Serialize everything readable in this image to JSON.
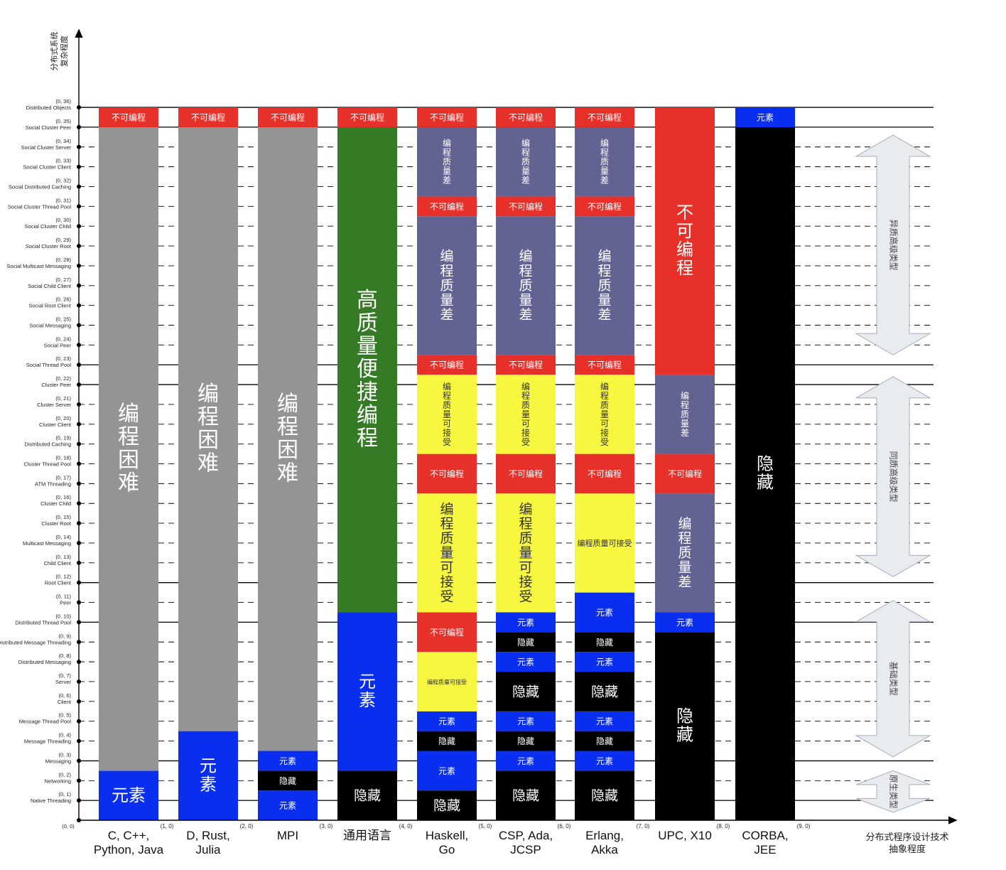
{
  "y_axis_title": [
    "分布式系统",
    "复杂程度"
  ],
  "x_axis_title": [
    "分布式程序设计技术",
    "抽象程度"
  ],
  "origin_label": "(0, 0)",
  "levels": [
    {
      "coord": "(0, 1)",
      "name": "Native Threading"
    },
    {
      "coord": "(0, 2)",
      "name": "Networking"
    },
    {
      "coord": "(0, 3)",
      "name": "Messaging"
    },
    {
      "coord": "(0, 4)",
      "name": "Message Threading"
    },
    {
      "coord": "(0, 5)",
      "name": "Message Thread Pool"
    },
    {
      "coord": "(0, 6)",
      "name": "Client"
    },
    {
      "coord": "(0, 7)",
      "name": "Server"
    },
    {
      "coord": "(0, 8)",
      "name": "Distributed Messaging"
    },
    {
      "coord": "(0, 9)",
      "name": "Distributed Message Threading"
    },
    {
      "coord": "(0, 10)",
      "name": "Distributed Thread Pool"
    },
    {
      "coord": "(0, 11)",
      "name": "Peer"
    },
    {
      "coord": "(0, 12)",
      "name": "Root Client"
    },
    {
      "coord": "(0, 13)",
      "name": "Child Client"
    },
    {
      "coord": "(0, 14)",
      "name": "Multicast Messaging"
    },
    {
      "coord": "(0, 15)",
      "name": "Cluster Root"
    },
    {
      "coord": "(0, 16)",
      "name": "Cluster Child"
    },
    {
      "coord": "(0, 17)",
      "name": "ATM Threading"
    },
    {
      "coord": "(0, 18)",
      "name": "Cluster Thread Pool"
    },
    {
      "coord": "(0, 19)",
      "name": "Distributed Caching"
    },
    {
      "coord": "(0, 20)",
      "name": "Cluster Client"
    },
    {
      "coord": "(0, 21)",
      "name": "Cluster Server"
    },
    {
      "coord": "(0, 22)",
      "name": "Cluster Peer"
    },
    {
      "coord": "(0, 23)",
      "name": "Social Thread Pool"
    },
    {
      "coord": "(0, 24)",
      "name": "Social Peer"
    },
    {
      "coord": "(0, 25)",
      "name": "Social Messaging"
    },
    {
      "coord": "(0, 26)",
      "name": "Social Root Client"
    },
    {
      "coord": "(0, 27)",
      "name": "Social Child Client"
    },
    {
      "coord": "(0, 28)",
      "name": "Social Multicast Messaging"
    },
    {
      "coord": "(0, 29)",
      "name": "Social Cluster Root"
    },
    {
      "coord": "(0, 30)",
      "name": "Social Cluster Child"
    },
    {
      "coord": "(0, 31)",
      "name": "Social Cluster Thread Pool"
    },
    {
      "coord": "(0, 32)",
      "name": "Social Distributed Caching"
    },
    {
      "coord": "(0, 33)",
      "name": "Social Cluster Client"
    },
    {
      "coord": "(0, 34)",
      "name": "Social Cluster Server"
    },
    {
      "coord": "(0, 35)",
      "name": "Social Cluster Peer"
    },
    {
      "coord": "(0, 36)",
      "name": "Distributed Objects"
    }
  ],
  "solid_levels": [
    1,
    3,
    10,
    12,
    22,
    23,
    35,
    36
  ],
  "colors": {
    "red": "#e8302a",
    "gray": "#949494",
    "blue": "#0a2ef0",
    "black": "#000000",
    "green": "#357a24",
    "purple": "#636393",
    "yellow": "#f7f740",
    "category_arrow_fill": "#e8ebf0",
    "category_arrow_stroke": "#a8adb8"
  },
  "techniques": [
    {
      "label": [
        "C, C++,",
        "Python, Java"
      ],
      "coord": "(1, 0)",
      "segments": [
        {
          "from": 0,
          "to": 2.5,
          "color": "blue",
          "text": "元素",
          "size": "big"
        },
        {
          "from": 2.5,
          "to": 35,
          "color": "gray",
          "text": "编程困难",
          "size": "huge",
          "vertical": true
        },
        {
          "from": 35,
          "to": 36,
          "color": "red",
          "text": "不可编程",
          "size": "small"
        }
      ]
    },
    {
      "label": [
        "D, Rust,",
        "Julia"
      ],
      "coord": "(2, 0)",
      "segments": [
        {
          "from": 0,
          "to": 4.5,
          "color": "blue",
          "text": "元素",
          "size": "big",
          "vertical": true
        },
        {
          "from": 4.5,
          "to": 35,
          "color": "gray",
          "text": "编程困难",
          "size": "huge",
          "vertical": true
        },
        {
          "from": 35,
          "to": 36,
          "color": "red",
          "text": "不可编程",
          "size": "small"
        }
      ]
    },
    {
      "label": [
        "MPI"
      ],
      "coord": "(3, 0)",
      "segments": [
        {
          "from": 0,
          "to": 1.5,
          "color": "blue",
          "text": "元素",
          "size": "small"
        },
        {
          "from": 1.5,
          "to": 2.5,
          "color": "black",
          "text": "隐藏",
          "size": "small"
        },
        {
          "from": 2.5,
          "to": 3.5,
          "color": "blue",
          "text": "元素",
          "size": "small"
        },
        {
          "from": 3.5,
          "to": 35,
          "color": "gray",
          "text": "编程困难",
          "size": "huge",
          "vertical": true
        },
        {
          "from": 35,
          "to": 36,
          "color": "red",
          "text": "不可编程",
          "size": "small"
        }
      ]
    },
    {
      "label": [
        "通用语言"
      ],
      "coord": "(4, 0)",
      "segments": [
        {
          "from": 0,
          "to": 2.5,
          "color": "black",
          "text": "隐藏",
          "size": "mid"
        },
        {
          "from": 2.5,
          "to": 10.5,
          "color": "blue",
          "text": "元素",
          "size": "big",
          "vertical": true
        },
        {
          "from": 10.5,
          "to": 35,
          "color": "green",
          "text": "高质量便捷编程",
          "size": "huge",
          "vertical": true
        },
        {
          "from": 35,
          "to": 36,
          "color": "red",
          "text": "不可编程",
          "size": "small"
        }
      ]
    },
    {
      "label": [
        "Haskell,",
        "Go"
      ],
      "coord": "(5, 0)",
      "segments": [
        {
          "from": 0,
          "to": 1.5,
          "color": "black",
          "text": "隐藏",
          "size": "mid"
        },
        {
          "from": 1.5,
          "to": 3.5,
          "color": "blue",
          "text": "元素",
          "size": "small"
        },
        {
          "from": 3.5,
          "to": 4.5,
          "color": "black",
          "text": "隐藏",
          "size": "small"
        },
        {
          "from": 4.5,
          "to": 5.5,
          "color": "blue",
          "text": "元素",
          "size": "small"
        },
        {
          "from": 5.5,
          "to": 8.5,
          "color": "yellow",
          "text": "编程质量可接受",
          "size": "tiny"
        },
        {
          "from": 8.5,
          "to": 10.5,
          "color": "red",
          "text": "不可编程",
          "size": "small"
        },
        {
          "from": 10.5,
          "to": 16.5,
          "color": "yellow",
          "text": "编程质量可接受",
          "size": "mid",
          "vertical": true
        },
        {
          "from": 16.5,
          "to": 18.5,
          "color": "red",
          "text": "不可编程",
          "size": "small"
        },
        {
          "from": 18.5,
          "to": 22.5,
          "color": "yellow",
          "text": "编程质量可接受",
          "size": "small",
          "vertical": true
        },
        {
          "from": 22.5,
          "to": 23.5,
          "color": "red",
          "text": "不可编程",
          "size": "small"
        },
        {
          "from": 23.5,
          "to": 30.5,
          "color": "purple",
          "text": "编程质量差",
          "size": "mid",
          "vertical": true
        },
        {
          "from": 30.5,
          "to": 31.5,
          "color": "red",
          "text": "不可编程",
          "size": "small"
        },
        {
          "from": 31.5,
          "to": 35,
          "color": "purple",
          "text": "编程质量差",
          "size": "small",
          "vertical": true
        },
        {
          "from": 35,
          "to": 36,
          "color": "red",
          "text": "不可编程",
          "size": "small"
        }
      ]
    },
    {
      "label": [
        "CSP, Ada,",
        "JCSP"
      ],
      "coord": "(6, 0)",
      "segments": [
        {
          "from": 0,
          "to": 2.5,
          "color": "black",
          "text": "隐藏",
          "size": "mid"
        },
        {
          "from": 2.5,
          "to": 3.5,
          "color": "blue",
          "text": "元素",
          "size": "small"
        },
        {
          "from": 3.5,
          "to": 4.5,
          "color": "black",
          "text": "隐藏",
          "size": "small"
        },
        {
          "from": 4.5,
          "to": 5.5,
          "color": "blue",
          "text": "元素",
          "size": "small"
        },
        {
          "from": 5.5,
          "to": 7.5,
          "color": "black",
          "text": "隐藏",
          "size": "mid"
        },
        {
          "from": 7.5,
          "to": 8.5,
          "color": "blue",
          "text": "元素",
          "size": "small"
        },
        {
          "from": 8.5,
          "to": 9.5,
          "color": "black",
          "text": "隐藏",
          "size": "small"
        },
        {
          "from": 9.5,
          "to": 10.5,
          "color": "blue",
          "text": "元素",
          "size": "small"
        },
        {
          "from": 10.5,
          "to": 16.5,
          "color": "yellow",
          "text": "编程质量可接受",
          "size": "mid",
          "vertical": true
        },
        {
          "from": 16.5,
          "to": 18.5,
          "color": "red",
          "text": "不可编程",
          "size": "small"
        },
        {
          "from": 18.5,
          "to": 22.5,
          "color": "yellow",
          "text": "编程质量可接受",
          "size": "small",
          "vertical": true
        },
        {
          "from": 22.5,
          "to": 23.5,
          "color": "red",
          "text": "不可编程",
          "size": "small"
        },
        {
          "from": 23.5,
          "to": 30.5,
          "color": "purple",
          "text": "编程质量差",
          "size": "mid",
          "vertical": true
        },
        {
          "from": 30.5,
          "to": 31.5,
          "color": "red",
          "text": "不可编程",
          "size": "small"
        },
        {
          "from": 31.5,
          "to": 35,
          "color": "purple",
          "text": "编程质量差",
          "size": "small",
          "vertical": true
        },
        {
          "from": 35,
          "to": 36,
          "color": "red",
          "text": "不可编程",
          "size": "small"
        }
      ]
    },
    {
      "label": [
        "Erlang,",
        "Akka"
      ],
      "coord": "(7, 0)",
      "segments": [
        {
          "from": 0,
          "to": 2.5,
          "color": "black",
          "text": "隐藏",
          "size": "mid"
        },
        {
          "from": 2.5,
          "to": 3.5,
          "color": "blue",
          "text": "元素",
          "size": "small"
        },
        {
          "from": 3.5,
          "to": 4.5,
          "color": "black",
          "text": "隐藏",
          "size": "small"
        },
        {
          "from": 4.5,
          "to": 5.5,
          "color": "blue",
          "text": "元素",
          "size": "small"
        },
        {
          "from": 5.5,
          "to": 7.5,
          "color": "black",
          "text": "隐藏",
          "size": "mid"
        },
        {
          "from": 7.5,
          "to": 8.5,
          "color": "blue",
          "text": "元素",
          "size": "small"
        },
        {
          "from": 8.5,
          "to": 9.5,
          "color": "black",
          "text": "隐藏",
          "size": "small"
        },
        {
          "from": 9.5,
          "to": 11.5,
          "color": "blue",
          "text": "元素",
          "size": "small"
        },
        {
          "from": 11.5,
          "to": 16.5,
          "color": "yellow",
          "text": "编程质量可接受",
          "size": "mid",
          "vertical": true
        },
        {
          "from": 16.5,
          "to": 18.5,
          "color": "red",
          "text": "不可编程",
          "size": "small"
        },
        {
          "from": 18.5,
          "to": 22.5,
          "color": "yellow",
          "text": "编程质量可接受",
          "size": "small",
          "vertical": true
        },
        {
          "from": 22.5,
          "to": 23.5,
          "color": "red",
          "text": "不可编程",
          "size": "small"
        },
        {
          "from": 23.5,
          "to": 30.5,
          "color": "purple",
          "text": "编程质量差",
          "size": "mid",
          "vertical": true
        },
        {
          "from": 30.5,
          "to": 31.5,
          "color": "red",
          "text": "不可编程",
          "size": "small"
        },
        {
          "from": 31.5,
          "to": 35,
          "color": "purple",
          "text": "编程质量差",
          "size": "small",
          "vertical": true
        },
        {
          "from": 35,
          "to": 36,
          "color": "red",
          "text": "不可编程",
          "size": "small"
        }
      ]
    },
    {
      "label": [
        "UPC, X10"
      ],
      "coord": "(8, 0)",
      "segments": [
        {
          "from": 0,
          "to": 9.5,
          "color": "black",
          "text": "隐藏",
          "size": "big",
          "vertical": true
        },
        {
          "from": 9.5,
          "to": 10.5,
          "color": "blue",
          "text": "元素",
          "size": "small"
        },
        {
          "from": 10.5,
          "to": 16.5,
          "color": "purple",
          "text": "编程质量差",
          "size": "mid",
          "vertical": true
        },
        {
          "from": 16.5,
          "to": 18.5,
          "color": "red",
          "text": "不可编程",
          "size": "small"
        },
        {
          "from": 18.5,
          "to": 22.5,
          "color": "purple",
          "text": "编程质量差",
          "size": "small",
          "vertical": true
        },
        {
          "from": 22.5,
          "to": 36,
          "color": "red",
          "text": "不可编程",
          "size": "big",
          "vertical": true
        }
      ]
    },
    {
      "label": [
        "CORBA,",
        "JEE"
      ],
      "coord": "(9, 0)",
      "segments": [
        {
          "from": 0,
          "to": 35,
          "color": "black",
          "text": "隐藏",
          "size": "big",
          "vertical": true
        },
        {
          "from": 35,
          "to": 36,
          "color": "blue",
          "text": "元素",
          "size": "small"
        }
      ]
    }
  ],
  "categories": [
    {
      "label": "原生类型",
      "from": 0.4,
      "to": 2.5
    },
    {
      "label": "基础类型",
      "from": 3.2,
      "to": 11.1
    },
    {
      "label": "同质高级类型",
      "from": 12.3,
      "to": 22.4
    },
    {
      "label": "异质高级类型",
      "from": 23.5,
      "to": 34.6
    }
  ]
}
